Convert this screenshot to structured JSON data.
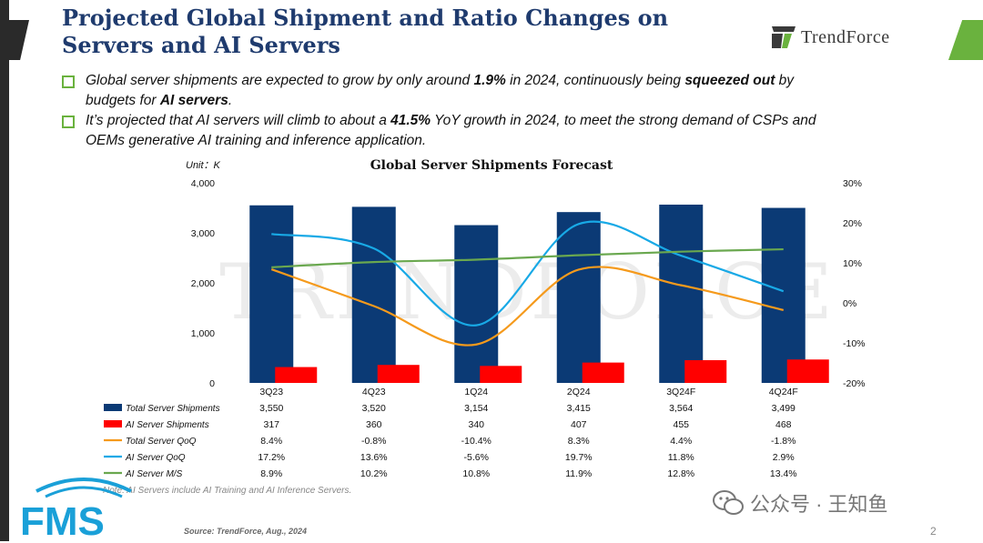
{
  "title": "Projected Global Shipment and Ratio Changes on Servers and AI Servers",
  "logo_text": "TrendForce",
  "bullets": [
    {
      "parts": [
        {
          "text": "Global server shipments are expected to grow by only around ",
          "bold": false
        },
        {
          "text": "1.9%",
          "bold": true
        },
        {
          "text": " in 2024, continuously being ",
          "bold": false
        },
        {
          "text": "squeezed out",
          "bold": true
        },
        {
          "text": " by budgets for ",
          "bold": false
        },
        {
          "text": "AI servers",
          "bold": true
        },
        {
          "text": ".",
          "bold": false
        }
      ]
    },
    {
      "parts": [
        {
          "text": "It’s projected that AI servers will climb to about a ",
          "bold": false
        },
        {
          "text": "41.5%",
          "bold": true
        },
        {
          "text": " YoY growth in 2024, to meet the strong demand of CSPs and OEMs generative AI training and  inference application.",
          "bold": false
        }
      ]
    }
  ],
  "chart_data": {
    "type": "bar",
    "title": "Global Server Shipments Forecast",
    "unit_label": "Unit：K",
    "categories": [
      "3Q23",
      "4Q23",
      "1Q24",
      "2Q24",
      "3Q24F",
      "4Q24F"
    ],
    "y_left": {
      "min": 0,
      "max": 4000,
      "ticks": [
        "4,000",
        "3,000",
        "2,000",
        "1,000",
        "0"
      ],
      "tick_values": [
        4000,
        3000,
        2000,
        1000,
        0
      ]
    },
    "y_right": {
      "min": -20,
      "max": 30,
      "ticks": [
        "30%",
        "20%",
        "10%",
        "0%",
        "-10%",
        "-20%"
      ],
      "tick_values": [
        30,
        20,
        10,
        0,
        -10,
        -20
      ]
    },
    "series": [
      {
        "name": "Total Server Shipments",
        "type": "bar",
        "axis": "left",
        "color": "#0b3a75",
        "values": [
          3550,
          3520,
          3154,
          3415,
          3564,
          3499
        ],
        "labels": [
          "3,550",
          "3,520",
          "3,154",
          "3,415",
          "3,564",
          "3,499"
        ]
      },
      {
        "name": "AI Server Shipments",
        "type": "bar",
        "axis": "left",
        "color": "#ff0000",
        "values": [
          317,
          360,
          340,
          407,
          455,
          468
        ],
        "labels": [
          "317",
          "360",
          "340",
          "407",
          "455",
          "468"
        ]
      },
      {
        "name": "Total Server QoQ",
        "type": "line",
        "axis": "right",
        "color": "#f59a1c",
        "values": [
          8.4,
          -0.8,
          -10.4,
          8.3,
          4.4,
          -1.8
        ],
        "labels": [
          "8.4%",
          "-0.8%",
          "-10.4%",
          "8.3%",
          "4.4%",
          "-1.8%"
        ]
      },
      {
        "name": "AI Server QoQ",
        "type": "line",
        "axis": "right",
        "color": "#18a9e6",
        "values": [
          17.2,
          13.6,
          -5.6,
          19.7,
          11.8,
          2.9
        ],
        "labels": [
          "17.2%",
          "13.6%",
          "-5.6%",
          "19.7%",
          "11.8%",
          "2.9%"
        ]
      },
      {
        "name": "AI Server M/S",
        "type": "line",
        "axis": "right",
        "color": "#6aa84f",
        "values": [
          8.9,
          10.2,
          10.8,
          11.9,
          12.8,
          13.4
        ],
        "labels": [
          "8.9%",
          "10.2%",
          "10.8%",
          "11.9%",
          "12.8%",
          "13.4%"
        ]
      }
    ],
    "watermark": "TRENDFORCE",
    "note": "Note: AI Servers include AI Training and AI Inference Servers."
  },
  "footer": {
    "source": "Source: TrendForce, Aug., 2024",
    "page": "2",
    "wechat": "公众号 · 王知鱼",
    "fms_logo": "FMS"
  }
}
